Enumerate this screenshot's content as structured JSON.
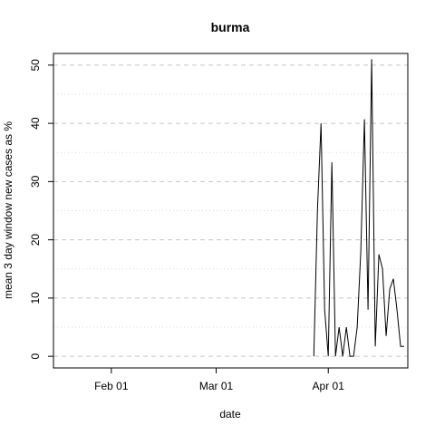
{
  "chart_data": {
    "type": "line",
    "title": "burma",
    "xlabel": "date",
    "ylabel": "mean  3  day window new cases as %",
    "xlim": [
      "2020-01-16",
      "2020-04-23"
    ],
    "ylim": [
      -2,
      52
    ],
    "x_ticks": [
      {
        "date": "2020-02-01",
        "label": "Feb 01"
      },
      {
        "date": "2020-03-01",
        "label": "Mar 01"
      },
      {
        "date": "2020-04-01",
        "label": "Apr 01"
      }
    ],
    "y_ticks": [
      0,
      10,
      20,
      30,
      40,
      50
    ],
    "grid": {
      "major_y": [
        0,
        10,
        20,
        30,
        40,
        50
      ],
      "minor_y": [
        5,
        15,
        25,
        35,
        45
      ],
      "style": "dashed"
    },
    "series": [
      {
        "color": "#000000",
        "points": [
          {
            "x": "2020-03-28",
            "y": 0
          },
          {
            "x": "2020-03-29",
            "y": 25
          },
          {
            "x": "2020-03-30",
            "y": 40
          },
          {
            "x": "2020-03-31",
            "y": 8
          },
          {
            "x": "2020-04-01",
            "y": 0
          },
          {
            "x": "2020-04-02",
            "y": 33.3
          },
          {
            "x": "2020-04-03",
            "y": 0
          },
          {
            "x": "2020-04-04",
            "y": 5
          },
          {
            "x": "2020-04-05",
            "y": 0
          },
          {
            "x": "2020-04-06",
            "y": 5
          },
          {
            "x": "2020-04-07",
            "y": 0
          },
          {
            "x": "2020-04-08",
            "y": 0
          },
          {
            "x": "2020-04-09",
            "y": 5
          },
          {
            "x": "2020-04-10",
            "y": 18
          },
          {
            "x": "2020-04-11",
            "y": 40.7
          },
          {
            "x": "2020-04-12",
            "y": 8
          },
          {
            "x": "2020-04-13",
            "y": 51
          },
          {
            "x": "2020-04-14",
            "y": 1.7
          },
          {
            "x": "2020-04-15",
            "y": 17.5
          },
          {
            "x": "2020-04-16",
            "y": 15
          },
          {
            "x": "2020-04-17",
            "y": 3.5
          },
          {
            "x": "2020-04-18",
            "y": 11.5
          },
          {
            "x": "2020-04-19",
            "y": 13.3
          },
          {
            "x": "2020-04-20",
            "y": 8
          },
          {
            "x": "2020-04-21",
            "y": 1.7
          },
          {
            "x": "2020-04-22",
            "y": 1.7
          }
        ]
      }
    ]
  }
}
